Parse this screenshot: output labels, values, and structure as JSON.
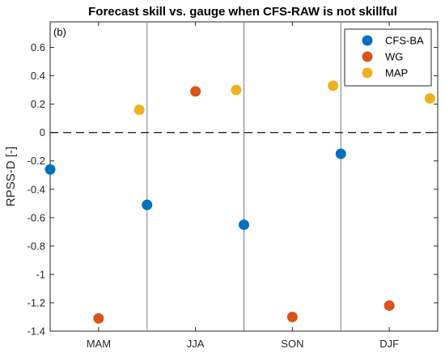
{
  "chart_data": {
    "type": "scatter",
    "title": "Forecast skill vs. gauge when CFS-RAW is not skillful",
    "panel_label": "(b)",
    "ylabel": "RPSS-D [-]",
    "xlabel": "",
    "categories": [
      "MAM",
      "JJA",
      "SON",
      "DJF"
    ],
    "ylim": [
      -1.4,
      0.78
    ],
    "yticks": [
      0.6,
      0.4,
      0.2,
      0,
      -0.2,
      -0.4,
      -0.6,
      -0.8,
      -1,
      -1.2,
      -1.4
    ],
    "ytick_labels": [
      "0.6",
      "0.4",
      "0.2",
      "0",
      "-0.2",
      "-0.4",
      "-0.6",
      "-0.8",
      "-1",
      "-1.2",
      "-1.4"
    ],
    "zero_line": "dashed",
    "grid": false,
    "category_separators": true,
    "legend_position": "top-right",
    "series": [
      {
        "name": "CFS-BA",
        "color": "#0072BD",
        "values": [
          -0.26,
          -0.51,
          -0.65,
          -0.15
        ]
      },
      {
        "name": "WG",
        "color": "#D95319",
        "values": [
          -1.31,
          0.29,
          -1.3,
          -1.22
        ]
      },
      {
        "name": "MAP",
        "color": "#EDB120",
        "values": [
          0.16,
          0.3,
          0.33,
          0.24
        ]
      }
    ]
  }
}
